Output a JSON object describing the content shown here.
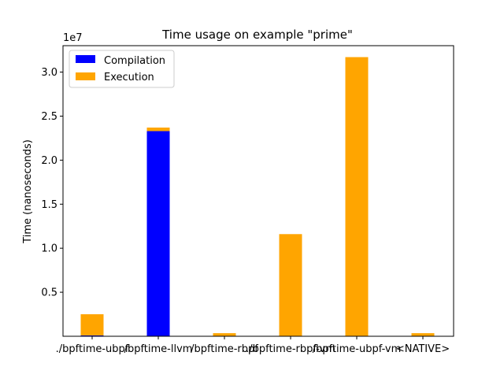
{
  "chart_data": {
    "type": "bar",
    "stacked": true,
    "title": "Time usage on example \"prime\"",
    "xlabel": "",
    "ylabel": "Time (nanoseconds)",
    "y_offset_label": "1e7",
    "y_tick_labels": [
      "0.5",
      "1.0",
      "1.5",
      "2.0",
      "2.5",
      "3.0"
    ],
    "y_tick_values": [
      5000000,
      10000000,
      15000000,
      20000000,
      25000000,
      30000000
    ],
    "ylim": [
      0,
      33000000
    ],
    "categories": [
      "./bpftime-ubpf",
      "/bpftime-llvm",
      "/bpftime-rbpf",
      "./bpftime-rbpf-vm",
      "/bpftime-ubpf-vm",
      "<NATIVE>"
    ],
    "series": [
      {
        "name": "Compilation",
        "color": "#0000ff",
        "values": [
          100000,
          23300000,
          0,
          0,
          0,
          0
        ]
      },
      {
        "name": "Execution",
        "color": "#ffa500",
        "values": [
          2400000,
          400000,
          350000,
          11600000,
          31700000,
          350000
        ]
      }
    ],
    "grid": false,
    "legend_position": "top-left"
  }
}
